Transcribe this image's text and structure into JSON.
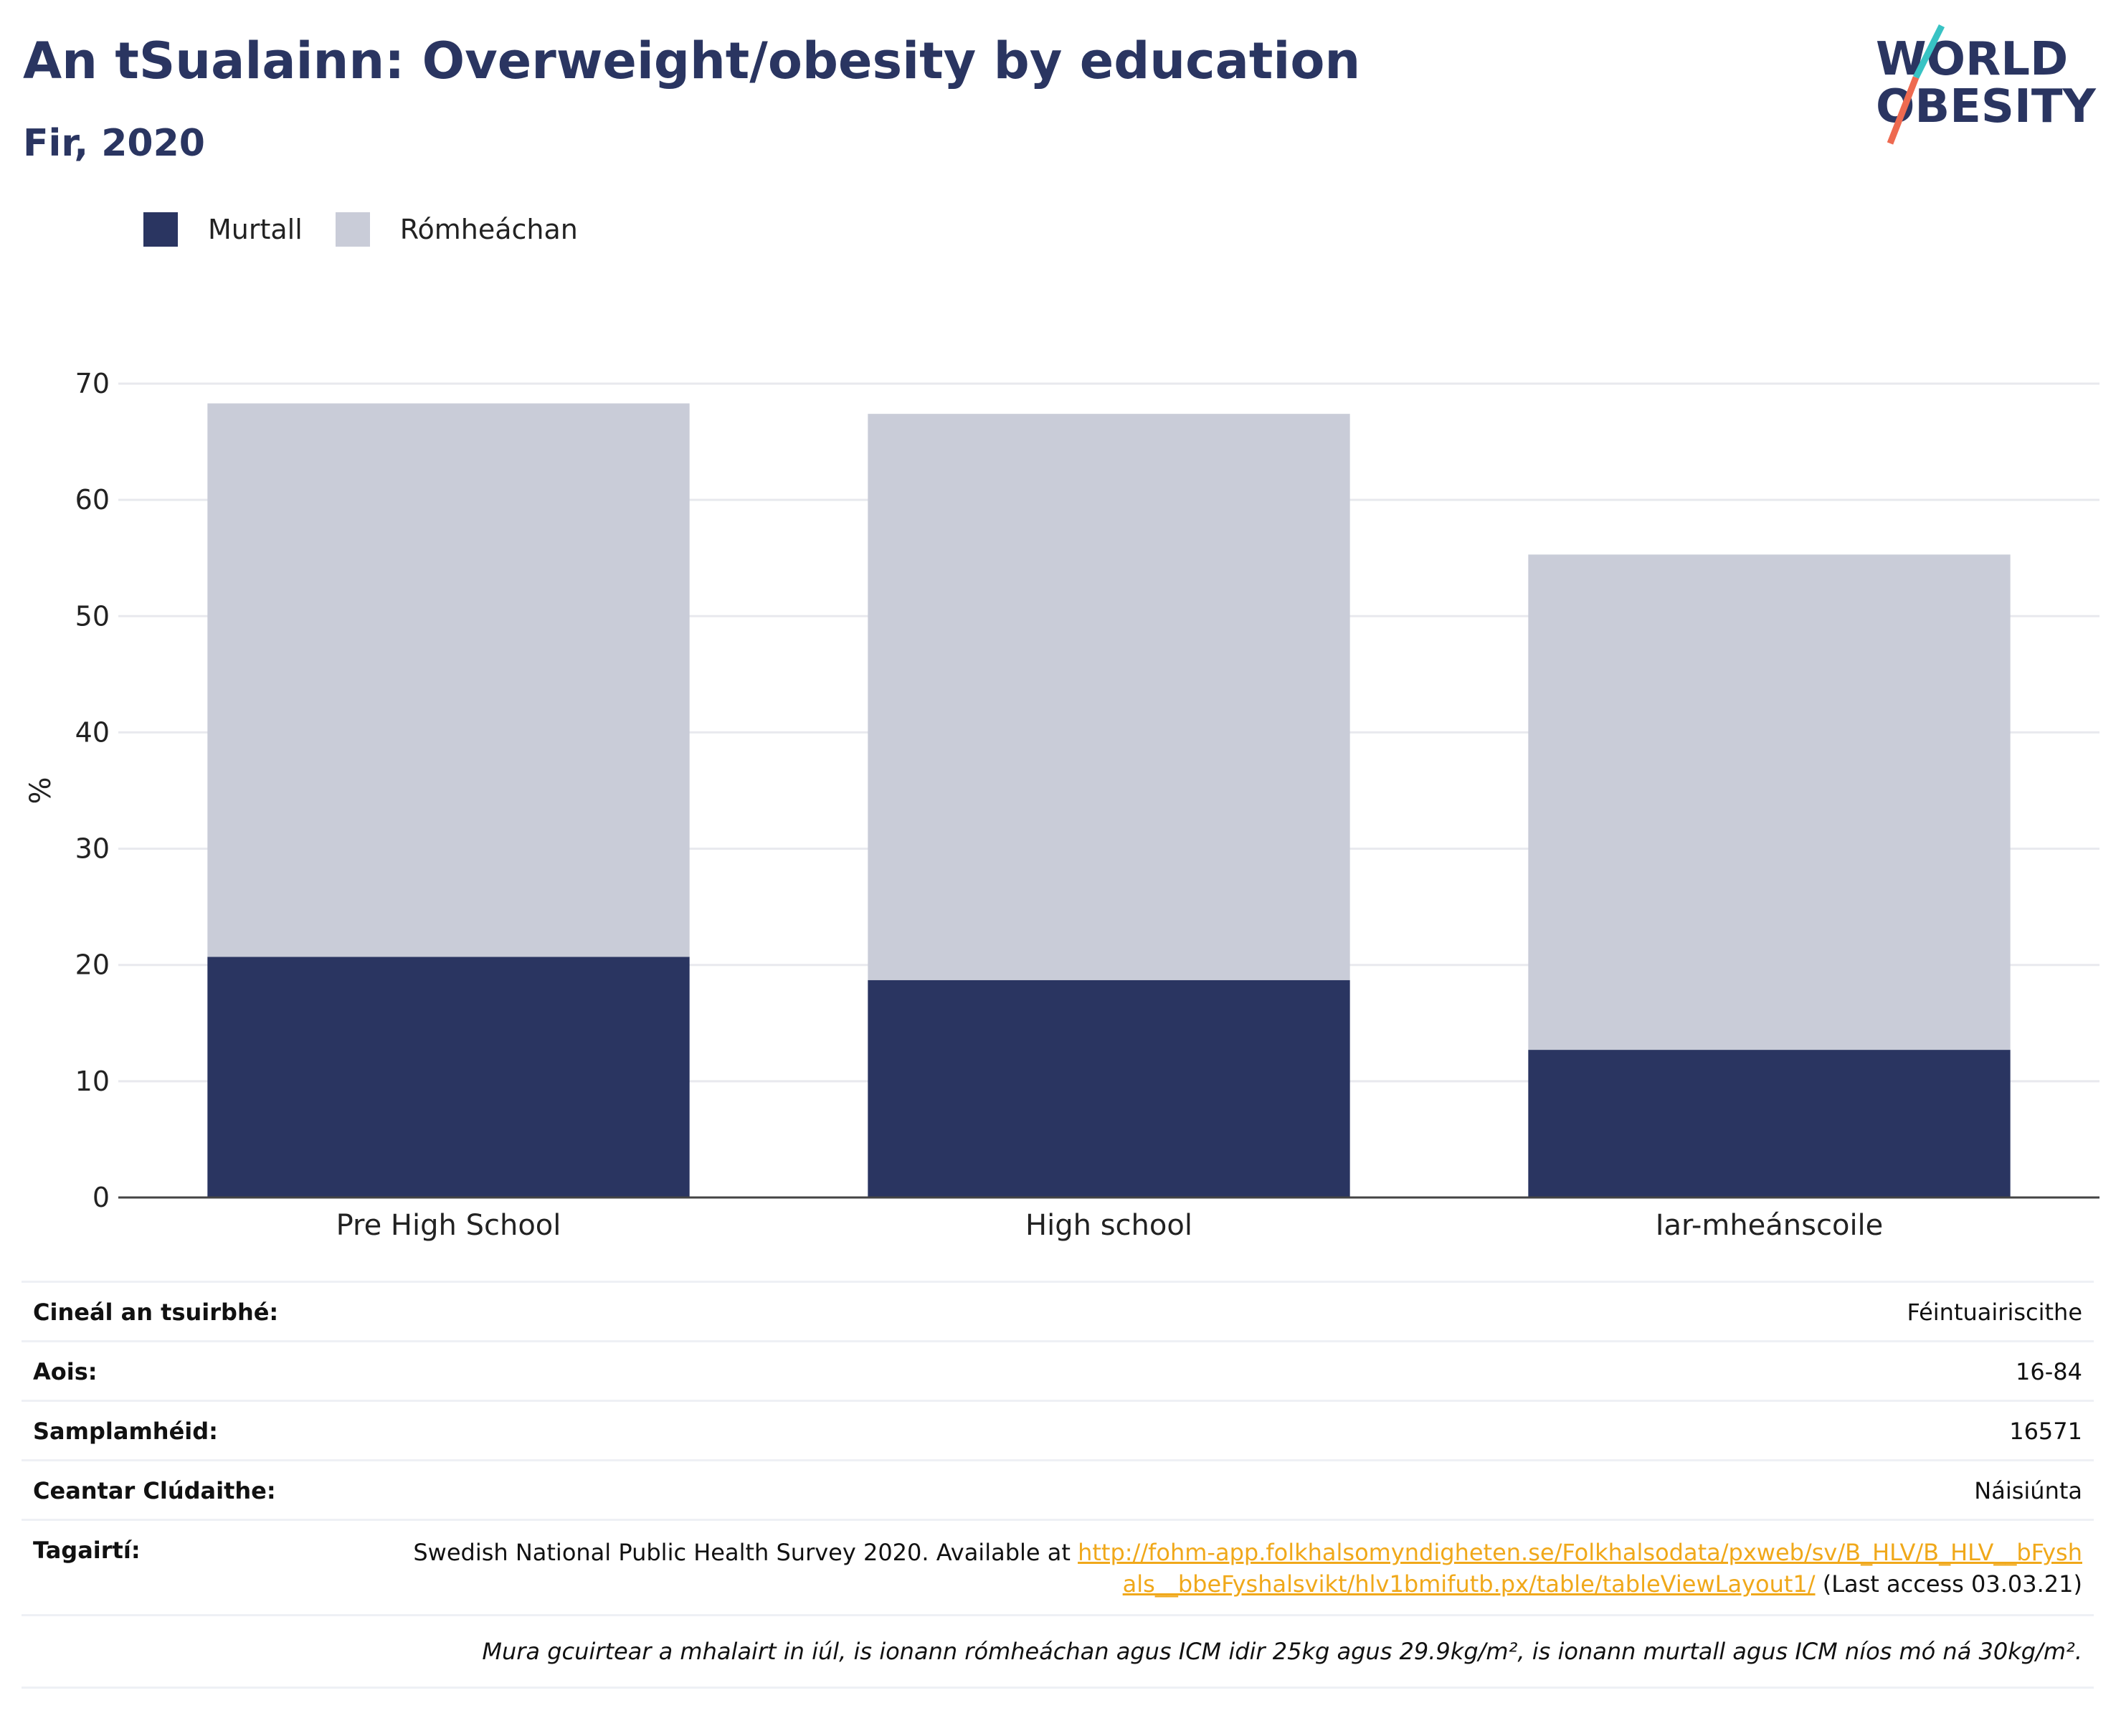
{
  "header": {
    "title": "An tSualainn: Overweight/obesity by education",
    "subtitle": "Fir, 2020"
  },
  "logo": {
    "line1": "WORLD",
    "line2": "OBESITY"
  },
  "colors": {
    "title": "#2a3561",
    "obese": "#2a3561",
    "overweight": "#c9ccd8",
    "link": "#f0a81a",
    "logo_teal": "#38c3c4",
    "logo_coral": "#ee6a50"
  },
  "chart_data": {
    "type": "bar",
    "stacked": true,
    "categories": [
      "Pre High School",
      "High school",
      "Iar-mheánscoile"
    ],
    "series": [
      {
        "name": "Murtall",
        "values": [
          20.7,
          18.7,
          12.7
        ],
        "color": "#2a3561"
      },
      {
        "name": "Rómheáchan",
        "values": [
          47.6,
          48.7,
          42.6
        ],
        "color": "#c9ccd8"
      }
    ],
    "totals": [
      68.3,
      67.4,
      55.3
    ],
    "ylabel": "%",
    "xlabel": "",
    "ylim": [
      0,
      70
    ],
    "yticks": [
      0,
      10,
      20,
      30,
      40,
      50,
      60,
      70
    ],
    "grid": true,
    "legend": "top-left"
  },
  "meta": {
    "survey_type_label": "Cineál an tsuirbhé:",
    "survey_type": "Féintuairiscithe",
    "age_label": "Aois:",
    "age": "16-84",
    "sample_label": "Samplamhéid:",
    "sample": "16571",
    "coverage_label": "Ceantar Clúdaithe:",
    "coverage": "Náisiúnta",
    "refs_label": "Tagairtí:",
    "ref_text": "Swedish National Public Health Survey 2020. Available at ",
    "ref_link": "http://fohm-app.folkhalsomyndigheten.se/Folkhalsodata/pxweb/sv/B_HLV/B_HLV__bFyshals__bbeFyshalsvikt/hlv1bmifutb.px/table/tableViewLayout1/",
    "ref_access": " (Last access 03.03.21)",
    "note": "Mura gcuirtear a mhalairt in iúl, is ionann rómheáchan agus ICM idir 25kg agus 29.9kg/m², is ionann murtall agus ICM níos mó ná 30kg/m²."
  }
}
